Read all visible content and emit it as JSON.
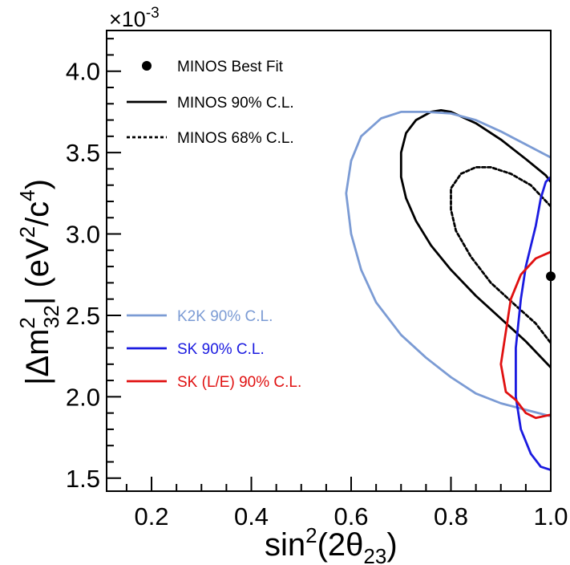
{
  "chart_data": {
    "type": "line",
    "xlabel": {
      "base": "sin",
      "sup": "2",
      "open": "(2θ",
      "sub": "23",
      "close": ")"
    },
    "ylabel": {
      "open": "|Δm",
      "sup": "2",
      "sub": "32",
      "mid": "| (eV",
      "sup2": "2",
      "slash": "/c",
      "sup4": "4",
      "close": ")"
    },
    "y_multiplier": {
      "prefix": "×10",
      "exponent": "-3"
    },
    "xlim": [
      0.11,
      1.0
    ],
    "ylim": [
      1.42,
      4.25
    ],
    "x_ticks": [
      {
        "value": 0.2,
        "label": "0.2"
      },
      {
        "value": 0.4,
        "label": "0.4"
      },
      {
        "value": 0.6,
        "label": "0.6"
      },
      {
        "value": 0.8,
        "label": "0.8"
      },
      {
        "value": 1.0,
        "label": "1.0"
      }
    ],
    "y_ticks": [
      {
        "value": 1.5,
        "label": "1.5"
      },
      {
        "value": 2.0,
        "label": "2.0"
      },
      {
        "value": 2.5,
        "label": "2.5"
      },
      {
        "value": 3.0,
        "label": "3.0"
      },
      {
        "value": 3.5,
        "label": "3.5"
      },
      {
        "value": 4.0,
        "label": "4.0"
      }
    ],
    "legend_groups": [
      "top-left",
      "middle-left"
    ],
    "best_fit": {
      "name": "MINOS Best Fit",
      "x": 1.0,
      "y": 2.74,
      "color": "#000000"
    },
    "series": [
      {
        "name": "MINOS 90% C.L.",
        "color": "#000000",
        "dash": "solid",
        "points": [
          [
            1.0,
            3.32
          ],
          [
            0.99,
            3.36
          ],
          [
            0.95,
            3.46
          ],
          [
            0.9,
            3.58
          ],
          [
            0.85,
            3.68
          ],
          [
            0.8,
            3.75
          ],
          [
            0.78,
            3.76
          ],
          [
            0.76,
            3.75
          ],
          [
            0.73,
            3.7
          ],
          [
            0.71,
            3.62
          ],
          [
            0.7,
            3.5
          ],
          [
            0.7,
            3.35
          ],
          [
            0.71,
            3.22
          ],
          [
            0.73,
            3.08
          ],
          [
            0.76,
            2.93
          ],
          [
            0.8,
            2.78
          ],
          [
            0.85,
            2.62
          ],
          [
            0.9,
            2.48
          ],
          [
            0.95,
            2.34
          ],
          [
            1.0,
            2.18
          ]
        ]
      },
      {
        "name": "MINOS 68% C.L.",
        "color": "#000000",
        "dash": "dotted",
        "points": [
          [
            1.0,
            3.17
          ],
          [
            0.96,
            3.3
          ],
          [
            0.92,
            3.37
          ],
          [
            0.88,
            3.41
          ],
          [
            0.85,
            3.41
          ],
          [
            0.82,
            3.37
          ],
          [
            0.8,
            3.28
          ],
          [
            0.8,
            3.15
          ],
          [
            0.81,
            3.02
          ],
          [
            0.84,
            2.86
          ],
          [
            0.88,
            2.7
          ],
          [
            0.93,
            2.56
          ],
          [
            0.97,
            2.45
          ],
          [
            1.0,
            2.33
          ]
        ]
      },
      {
        "name": "K2K 90% C.L.",
        "color": "#7B9BD4",
        "dash": "solid",
        "points": [
          [
            1.0,
            3.47
          ],
          [
            0.95,
            3.55
          ],
          [
            0.9,
            3.63
          ],
          [
            0.85,
            3.7
          ],
          [
            0.8,
            3.74
          ],
          [
            0.75,
            3.75
          ],
          [
            0.7,
            3.75
          ],
          [
            0.66,
            3.71
          ],
          [
            0.62,
            3.6
          ],
          [
            0.6,
            3.45
          ],
          [
            0.59,
            3.25
          ],
          [
            0.6,
            3.0
          ],
          [
            0.62,
            2.78
          ],
          [
            0.65,
            2.58
          ],
          [
            0.7,
            2.38
          ],
          [
            0.75,
            2.24
          ],
          [
            0.8,
            2.12
          ],
          [
            0.85,
            2.02
          ],
          [
            0.9,
            1.96
          ],
          [
            0.95,
            1.92
          ],
          [
            1.0,
            1.88
          ]
        ]
      },
      {
        "name": "SK 90% C.L.",
        "color": "#1B1BE0",
        "dash": "solid",
        "points": [
          [
            1.0,
            3.35
          ],
          [
            0.99,
            3.32
          ],
          [
            0.98,
            3.22
          ],
          [
            0.97,
            3.05
          ],
          [
            0.95,
            2.8
          ],
          [
            0.94,
            2.6
          ],
          [
            0.93,
            2.3
          ],
          [
            0.93,
            2.0
          ],
          [
            0.94,
            1.8
          ],
          [
            0.96,
            1.65
          ],
          [
            0.98,
            1.57
          ],
          [
            1.0,
            1.55
          ]
        ]
      },
      {
        "name": "SK (L/E) 90% C.L.",
        "color": "#E01010",
        "dash": "solid",
        "points": [
          [
            1.0,
            2.89
          ],
          [
            0.97,
            2.85
          ],
          [
            0.94,
            2.75
          ],
          [
            0.92,
            2.6
          ],
          [
            0.91,
            2.4
          ],
          [
            0.9,
            2.2
          ],
          [
            0.91,
            2.03
          ],
          [
            0.93,
            1.98
          ],
          [
            0.95,
            1.9
          ],
          [
            0.97,
            1.87
          ],
          [
            1.0,
            1.89
          ]
        ]
      }
    ]
  }
}
